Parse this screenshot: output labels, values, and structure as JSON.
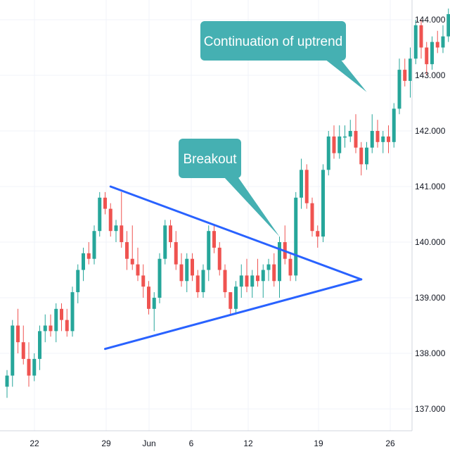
{
  "chart_data": {
    "type": "candlestick",
    "title": "",
    "xlabel": "",
    "ylabel": "",
    "y_ticks": [
      "144.000",
      "143.000",
      "142.000",
      "141.000",
      "140.000",
      "139.000",
      "138.000",
      "137.000"
    ],
    "ylim": [
      136.75,
      144.25
    ],
    "x_ticks": [
      "22",
      "29",
      "Jun",
      "6",
      "12",
      "19",
      "26"
    ],
    "grid": true,
    "colors": {
      "up": "#26a69a",
      "down": "#ef5350",
      "trendline": "#2962ff",
      "callout": "#45b0b2"
    },
    "series": [
      {
        "values": [
          {
            "o": 137.4,
            "h": 137.7,
            "l": 137.2,
            "c": 137.6
          },
          {
            "o": 137.6,
            "h": 138.6,
            "l": 137.4,
            "c": 138.5
          },
          {
            "o": 138.5,
            "h": 138.8,
            "l": 138.0,
            "c": 138.2
          },
          {
            "o": 138.2,
            "h": 138.5,
            "l": 137.8,
            "c": 137.9
          },
          {
            "o": 137.9,
            "h": 138.2,
            "l": 137.4,
            "c": 137.6
          },
          {
            "o": 137.6,
            "h": 138.0,
            "l": 137.5,
            "c": 137.9
          },
          {
            "o": 137.9,
            "h": 138.5,
            "l": 137.7,
            "c": 138.4
          },
          {
            "o": 138.4,
            "h": 138.7,
            "l": 138.2,
            "c": 138.5
          },
          {
            "o": 138.5,
            "h": 138.7,
            "l": 138.3,
            "c": 138.4
          },
          {
            "o": 138.4,
            "h": 138.9,
            "l": 138.2,
            "c": 138.8
          },
          {
            "o": 138.8,
            "h": 138.9,
            "l": 138.4,
            "c": 138.6
          },
          {
            "o": 138.6,
            "h": 138.8,
            "l": 138.3,
            "c": 138.4
          },
          {
            "o": 138.4,
            "h": 139.2,
            "l": 138.3,
            "c": 139.1
          },
          {
            "o": 139.1,
            "h": 139.6,
            "l": 138.9,
            "c": 139.5
          },
          {
            "o": 139.5,
            "h": 139.9,
            "l": 139.3,
            "c": 139.8
          },
          {
            "o": 139.8,
            "h": 140.0,
            "l": 139.6,
            "c": 139.7
          },
          {
            "o": 139.7,
            "h": 140.3,
            "l": 139.6,
            "c": 140.2
          },
          {
            "o": 140.2,
            "h": 140.9,
            "l": 140.1,
            "c": 140.8
          },
          {
            "o": 140.8,
            "h": 140.9,
            "l": 140.5,
            "c": 140.6
          },
          {
            "o": 140.6,
            "h": 140.7,
            "l": 140.1,
            "c": 140.2
          },
          {
            "o": 140.2,
            "h": 140.4,
            "l": 140.0,
            "c": 140.3
          },
          {
            "o": 140.3,
            "h": 140.9,
            "l": 139.9,
            "c": 140.0
          },
          {
            "o": 140.0,
            "h": 140.2,
            "l": 139.5,
            "c": 139.7
          },
          {
            "o": 139.7,
            "h": 140.3,
            "l": 139.5,
            "c": 139.6
          },
          {
            "o": 139.6,
            "h": 139.9,
            "l": 139.3,
            "c": 139.4
          },
          {
            "o": 139.4,
            "h": 139.6,
            "l": 139.0,
            "c": 139.2
          },
          {
            "o": 139.2,
            "h": 139.3,
            "l": 138.7,
            "c": 138.8
          },
          {
            "o": 138.8,
            "h": 139.1,
            "l": 138.4,
            "c": 139.0
          },
          {
            "o": 139.0,
            "h": 139.8,
            "l": 138.9,
            "c": 139.7
          },
          {
            "o": 139.7,
            "h": 140.4,
            "l": 139.6,
            "c": 140.3
          },
          {
            "o": 140.3,
            "h": 140.4,
            "l": 139.9,
            "c": 140.0
          },
          {
            "o": 140.0,
            "h": 140.2,
            "l": 139.5,
            "c": 139.6
          },
          {
            "o": 139.6,
            "h": 139.8,
            "l": 139.2,
            "c": 139.3
          },
          {
            "o": 139.3,
            "h": 139.8,
            "l": 139.1,
            "c": 139.7
          },
          {
            "o": 139.7,
            "h": 139.8,
            "l": 139.3,
            "c": 139.4
          },
          {
            "o": 139.4,
            "h": 139.5,
            "l": 139.0,
            "c": 139.1
          },
          {
            "o": 139.1,
            "h": 139.6,
            "l": 139.0,
            "c": 139.5
          },
          {
            "o": 139.5,
            "h": 140.3,
            "l": 139.3,
            "c": 140.2
          },
          {
            "o": 140.2,
            "h": 140.3,
            "l": 139.8,
            "c": 139.9
          },
          {
            "o": 139.9,
            "h": 140.0,
            "l": 139.4,
            "c": 139.5
          },
          {
            "o": 139.5,
            "h": 139.6,
            "l": 139.0,
            "c": 139.1
          },
          {
            "o": 139.1,
            "h": 139.1,
            "l": 138.7,
            "c": 138.8
          },
          {
            "o": 138.8,
            "h": 139.3,
            "l": 138.7,
            "c": 139.2
          },
          {
            "o": 139.2,
            "h": 139.6,
            "l": 139.0,
            "c": 139.4
          },
          {
            "o": 139.4,
            "h": 139.7,
            "l": 139.1,
            "c": 139.2
          },
          {
            "o": 139.2,
            "h": 139.5,
            "l": 139.0,
            "c": 139.4
          },
          {
            "o": 139.4,
            "h": 139.7,
            "l": 139.2,
            "c": 139.3
          },
          {
            "o": 139.3,
            "h": 139.6,
            "l": 139.0,
            "c": 139.5
          },
          {
            "o": 139.5,
            "h": 139.7,
            "l": 139.3,
            "c": 139.6
          },
          {
            "o": 139.6,
            "h": 139.8,
            "l": 139.2,
            "c": 139.3
          },
          {
            "o": 139.3,
            "h": 140.1,
            "l": 139.0,
            "c": 140.0
          },
          {
            "o": 140.0,
            "h": 140.3,
            "l": 139.6,
            "c": 139.7
          },
          {
            "o": 139.7,
            "h": 139.8,
            "l": 139.3,
            "c": 139.4
          },
          {
            "o": 139.4,
            "h": 140.9,
            "l": 139.3,
            "c": 140.8
          },
          {
            "o": 140.8,
            "h": 141.5,
            "l": 140.6,
            "c": 141.3
          },
          {
            "o": 141.3,
            "h": 141.4,
            "l": 140.6,
            "c": 140.7
          },
          {
            "o": 140.7,
            "h": 140.8,
            "l": 140.1,
            "c": 140.2
          },
          {
            "o": 140.2,
            "h": 140.3,
            "l": 139.9,
            "c": 140.1
          },
          {
            "o": 140.1,
            "h": 141.4,
            "l": 140.0,
            "c": 141.3
          },
          {
            "o": 141.3,
            "h": 142.0,
            "l": 141.2,
            "c": 141.9
          },
          {
            "o": 141.9,
            "h": 142.1,
            "l": 141.5,
            "c": 141.6
          },
          {
            "o": 141.6,
            "h": 142.1,
            "l": 141.5,
            "c": 141.9
          },
          {
            "o": 141.9,
            "h": 142.1,
            "l": 141.7,
            "c": 141.9
          },
          {
            "o": 141.9,
            "h": 142.2,
            "l": 141.8,
            "c": 142.0
          },
          {
            "o": 142.0,
            "h": 142.3,
            "l": 141.6,
            "c": 141.7
          },
          {
            "o": 141.7,
            "h": 141.8,
            "l": 141.2,
            "c": 141.4
          },
          {
            "o": 141.4,
            "h": 141.8,
            "l": 141.3,
            "c": 141.7
          },
          {
            "o": 141.7,
            "h": 142.3,
            "l": 141.6,
            "c": 142.0
          },
          {
            "o": 142.0,
            "h": 142.2,
            "l": 141.7,
            "c": 141.8
          },
          {
            "o": 141.8,
            "h": 142.0,
            "l": 141.6,
            "c": 141.9
          },
          {
            "o": 141.9,
            "h": 142.1,
            "l": 141.6,
            "c": 141.8
          },
          {
            "o": 141.8,
            "h": 142.5,
            "l": 141.7,
            "c": 142.4
          },
          {
            "o": 142.4,
            "h": 143.3,
            "l": 142.3,
            "c": 143.1
          },
          {
            "o": 143.1,
            "h": 143.3,
            "l": 142.8,
            "c": 142.9
          },
          {
            "o": 142.9,
            "h": 143.5,
            "l": 142.6,
            "c": 143.3
          },
          {
            "o": 143.3,
            "h": 144.0,
            "l": 143.2,
            "c": 143.9
          },
          {
            "o": 143.9,
            "h": 144.0,
            "l": 143.3,
            "c": 143.5
          },
          {
            "o": 143.5,
            "h": 143.6,
            "l": 143.0,
            "c": 143.2
          },
          {
            "o": 143.2,
            "h": 143.7,
            "l": 143.1,
            "c": 143.6
          },
          {
            "o": 143.6,
            "h": 143.8,
            "l": 143.4,
            "c": 143.5
          },
          {
            "o": 143.5,
            "h": 143.9,
            "l": 143.4,
            "c": 143.7
          },
          {
            "o": 143.7,
            "h": 144.2,
            "l": 143.6,
            "c": 144.1
          },
          {
            "o": 144.1,
            "h": 144.2,
            "l": 143.8,
            "c": 143.9
          }
        ]
      }
    ],
    "trendlines": [
      {
        "name": "resistance",
        "from": {
          "bar": 19,
          "price": 141.0
        },
        "to": {
          "bar": 65,
          "price": 139.33
        }
      },
      {
        "name": "support",
        "from": {
          "bar": 18,
          "price": 138.08
        },
        "to": {
          "bar": 65,
          "price": 139.33
        }
      }
    ],
    "annotations": [
      {
        "text": "Breakout",
        "anchor": {
          "bar": 50,
          "price": 140.1
        }
      },
      {
        "text": "Continuation of uptrend",
        "anchor": {
          "bar": 66,
          "price": 142.7
        }
      }
    ]
  }
}
